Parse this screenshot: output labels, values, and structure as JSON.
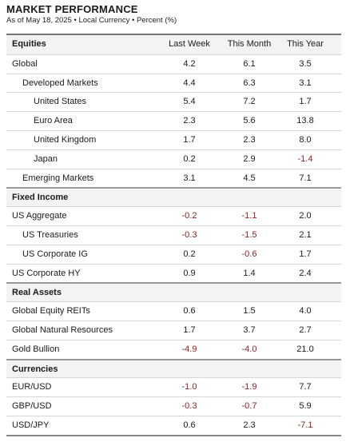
{
  "header": {
    "title": "MARKET PERFORMANCE",
    "subtitle": "As of May 18, 2025 • Local Currency • Percent (%)"
  },
  "table": {
    "columns": [
      "Last Week",
      "This Month",
      "This Year"
    ],
    "sections": [
      {
        "name": "Equities",
        "rows": [
          {
            "label": "Global",
            "values": [
              "4.2",
              "6.1",
              "3.5"
            ]
          },
          {
            "label": "Developed Markets",
            "values": [
              "4.4",
              "6.3",
              "3.1"
            ]
          },
          {
            "label": "United States",
            "values": [
              "5.4",
              "7.2",
              "1.7"
            ]
          },
          {
            "label": "Euro Area",
            "values": [
              "2.3",
              "5.6",
              "13.8"
            ]
          },
          {
            "label": "United Kingdom",
            "values": [
              "1.7",
              "2.3",
              "8.0"
            ]
          },
          {
            "label": "Japan",
            "values": [
              "0.2",
              "2.9",
              "-1.4"
            ]
          },
          {
            "label": "Emerging Markets",
            "values": [
              "3.1",
              "4.5",
              "7.1"
            ]
          }
        ]
      },
      {
        "name": "Fixed Income",
        "rows": [
          {
            "label": "US Aggregate",
            "values": [
              "-0.2",
              "-1.1",
              "2.0"
            ]
          },
          {
            "label": "US Treasuries",
            "values": [
              "-0.3",
              "-1.5",
              "2.1"
            ]
          },
          {
            "label": "US Corporate IG",
            "values": [
              "0.2",
              "-0.6",
              "1.7"
            ]
          },
          {
            "label": "US Corporate HY",
            "values": [
              "0.9",
              "1.4",
              "2.4"
            ]
          }
        ]
      },
      {
        "name": "Real Assets",
        "rows": [
          {
            "label": "Global Equity REITs",
            "values": [
              "0.6",
              "1.5",
              "4.0"
            ]
          },
          {
            "label": "Global Natural Resources",
            "values": [
              "1.7",
              "3.7",
              "2.7"
            ]
          },
          {
            "label": "Gold Bullion",
            "values": [
              "-4.9",
              "-4.0",
              "21.0"
            ]
          }
        ]
      },
      {
        "name": "Currencies",
        "rows": [
          {
            "label": "EUR/USD",
            "values": [
              "-1.0",
              "-1.9",
              "7.7"
            ]
          },
          {
            "label": "GBP/USD",
            "values": [
              "-0.3",
              "-0.7",
              "5.9"
            ]
          },
          {
            "label": "USD/JPY",
            "values": [
              "0.6",
              "2.3",
              "-7.1"
            ]
          }
        ]
      }
    ]
  }
}
